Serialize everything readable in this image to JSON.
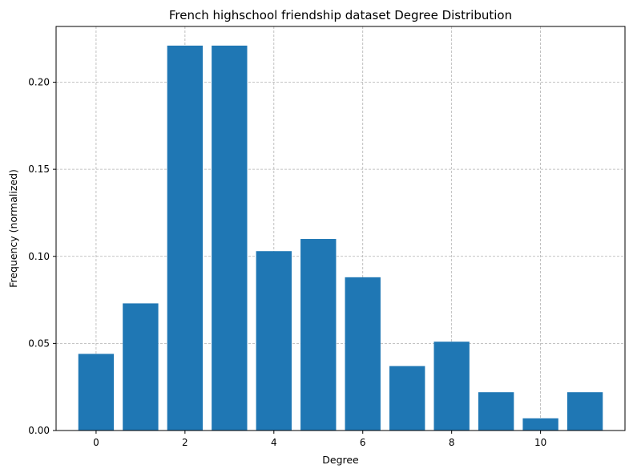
{
  "chart_data": {
    "type": "bar",
    "title": "French highschool friendship dataset Degree Distribution",
    "xlabel": "Degree",
    "ylabel": "Frequency (normalized)",
    "categories": [
      0,
      1,
      2,
      3,
      4,
      5,
      6,
      7,
      8,
      9,
      10,
      11
    ],
    "values": [
      0.044,
      0.073,
      0.221,
      0.221,
      0.103,
      0.11,
      0.088,
      0.037,
      0.051,
      0.022,
      0.007,
      0.022
    ],
    "xlim": [
      -0.9,
      11.9
    ],
    "ylim": [
      0,
      0.232
    ],
    "xticks": [
      0,
      2,
      4,
      6,
      8,
      10
    ],
    "xtick_labels": [
      "0",
      "2",
      "4",
      "6",
      "8",
      "10"
    ],
    "yticks": [
      0.0,
      0.05,
      0.1,
      0.15,
      0.2
    ],
    "ytick_labels": [
      "0.00",
      "0.05",
      "0.10",
      "0.15",
      "0.20"
    ],
    "grid": true,
    "bar_color": "#1f77b4"
  }
}
